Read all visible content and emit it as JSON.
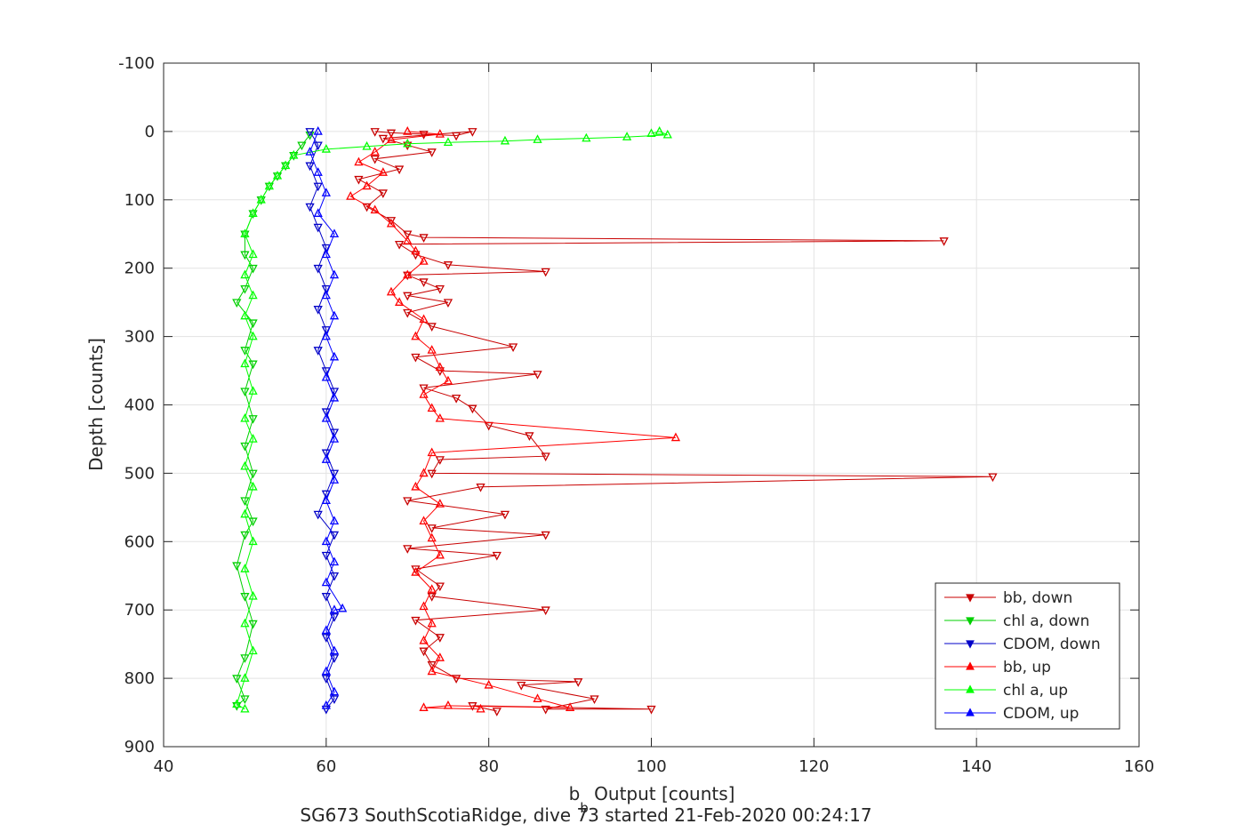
{
  "chart_data": {
    "type": "scatter",
    "title": "",
    "xlabel_main": "b",
    "xlabel_sub": "b",
    "xlabel_rest": " Output [counts]",
    "ylabel": "Depth [counts]",
    "caption": "SG673 SouthScotiaRidge, dive 73 started 21-Feb-2020 00:24:17",
    "xlim": [
      40,
      160
    ],
    "ylim": [
      -100,
      900
    ],
    "y_reversed": true,
    "grid": true,
    "x_ticks": [
      "40",
      "60",
      "80",
      "100",
      "120",
      "140",
      "160"
    ],
    "y_ticks": [
      "-100",
      "0",
      "100",
      "200",
      "300",
      "400",
      "500",
      "600",
      "700",
      "800",
      "900"
    ],
    "legend_position": "bottom-right",
    "series": [
      {
        "name": "bb, down",
        "color": "#c80000",
        "marker": "triangle-down",
        "line": true,
        "points": [
          [
            66,
            0
          ],
          [
            68,
            2
          ],
          [
            72,
            4
          ],
          [
            76,
            6
          ],
          [
            78,
            0
          ],
          [
            67,
            10
          ],
          [
            70,
            20
          ],
          [
            73,
            30
          ],
          [
            66,
            40
          ],
          [
            69,
            55
          ],
          [
            64,
            70
          ],
          [
            67,
            90
          ],
          [
            65,
            110
          ],
          [
            68,
            130
          ],
          [
            70,
            150
          ],
          [
            72,
            155
          ],
          [
            136,
            160
          ],
          [
            69,
            165
          ],
          [
            71,
            180
          ],
          [
            75,
            195
          ],
          [
            87,
            205
          ],
          [
            70,
            210
          ],
          [
            72,
            220
          ],
          [
            74,
            230
          ],
          [
            70,
            240
          ],
          [
            75,
            250
          ],
          [
            70,
            265
          ],
          [
            73,
            285
          ],
          [
            83,
            315
          ],
          [
            71,
            330
          ],
          [
            74,
            350
          ],
          [
            86,
            355
          ],
          [
            72,
            375
          ],
          [
            76,
            390
          ],
          [
            78,
            405
          ],
          [
            80,
            430
          ],
          [
            85,
            445
          ],
          [
            87,
            475
          ],
          [
            74,
            480
          ],
          [
            73,
            500
          ],
          [
            142,
            505
          ],
          [
            79,
            520
          ],
          [
            70,
            540
          ],
          [
            82,
            560
          ],
          [
            73,
            580
          ],
          [
            87,
            590
          ],
          [
            70,
            610
          ],
          [
            81,
            620
          ],
          [
            71,
            640
          ],
          [
            74,
            665
          ],
          [
            73,
            680
          ],
          [
            87,
            700
          ],
          [
            71,
            715
          ],
          [
            74,
            740
          ],
          [
            72,
            760
          ],
          [
            73,
            780
          ],
          [
            76,
            800
          ],
          [
            91,
            805
          ],
          [
            84,
            810
          ],
          [
            93,
            830
          ],
          [
            87,
            845
          ],
          [
            100,
            845
          ],
          [
            78,
            840
          ],
          [
            81,
            848
          ]
        ]
      },
      {
        "name": "chl a, down",
        "color": "#00d000",
        "marker": "triangle-down",
        "line": true,
        "points": [
          [
            58,
            5
          ],
          [
            57,
            20
          ],
          [
            56,
            35
          ],
          [
            55,
            50
          ],
          [
            54,
            65
          ],
          [
            53,
            80
          ],
          [
            52,
            100
          ],
          [
            51,
            120
          ],
          [
            50,
            150
          ],
          [
            50,
            180
          ],
          [
            51,
            200
          ],
          [
            50,
            230
          ],
          [
            49,
            250
          ],
          [
            51,
            280
          ],
          [
            50,
            320
          ],
          [
            51,
            340
          ],
          [
            50,
            380
          ],
          [
            51,
            420
          ],
          [
            50,
            460
          ],
          [
            51,
            500
          ],
          [
            50,
            540
          ],
          [
            51,
            570
          ],
          [
            50,
            590
          ],
          [
            49,
            635
          ],
          [
            50,
            680
          ],
          [
            51,
            720
          ],
          [
            50,
            770
          ],
          [
            49,
            800
          ],
          [
            50,
            830
          ],
          [
            49,
            840
          ]
        ]
      },
      {
        "name": "CDOM, down",
        "color": "#0000c8",
        "marker": "triangle-down",
        "line": true,
        "points": [
          [
            58,
            0
          ],
          [
            59,
            20
          ],
          [
            58,
            50
          ],
          [
            59,
            80
          ],
          [
            58,
            110
          ],
          [
            59,
            140
          ],
          [
            60,
            170
          ],
          [
            59,
            200
          ],
          [
            60,
            230
          ],
          [
            59,
            260
          ],
          [
            60,
            290
          ],
          [
            59,
            320
          ],
          [
            60,
            350
          ],
          [
            61,
            380
          ],
          [
            60,
            410
          ],
          [
            61,
            440
          ],
          [
            60,
            470
          ],
          [
            61,
            500
          ],
          [
            60,
            530
          ],
          [
            59,
            560
          ],
          [
            61,
            590
          ],
          [
            60,
            620
          ],
          [
            61,
            650
          ],
          [
            60,
            680
          ],
          [
            61,
            710
          ],
          [
            60,
            740
          ],
          [
            61,
            770
          ],
          [
            60,
            800
          ],
          [
            61,
            830
          ],
          [
            60,
            845
          ]
        ]
      },
      {
        "name": "bb, up",
        "color": "#ff0000",
        "marker": "triangle-up",
        "line": true,
        "points": [
          [
            70,
            0
          ],
          [
            74,
            4
          ],
          [
            68,
            12
          ],
          [
            66,
            30
          ],
          [
            64,
            45
          ],
          [
            67,
            60
          ],
          [
            65,
            80
          ],
          [
            63,
            95
          ],
          [
            66,
            115
          ],
          [
            68,
            135
          ],
          [
            70,
            160
          ],
          [
            71,
            175
          ],
          [
            72,
            190
          ],
          [
            70,
            210
          ],
          [
            68,
            235
          ],
          [
            69,
            250
          ],
          [
            72,
            275
          ],
          [
            71,
            300
          ],
          [
            73,
            320
          ],
          [
            74,
            345
          ],
          [
            75,
            365
          ],
          [
            72,
            385
          ],
          [
            73,
            405
          ],
          [
            74,
            420
          ],
          [
            103,
            448
          ],
          [
            73,
            470
          ],
          [
            72,
            500
          ],
          [
            71,
            520
          ],
          [
            74,
            545
          ],
          [
            72,
            570
          ],
          [
            73,
            595
          ],
          [
            74,
            620
          ],
          [
            71,
            645
          ],
          [
            73,
            670
          ],
          [
            72,
            695
          ],
          [
            73,
            720
          ],
          [
            72,
            745
          ],
          [
            74,
            770
          ],
          [
            73,
            790
          ],
          [
            80,
            810
          ],
          [
            86,
            830
          ],
          [
            90,
            843
          ],
          [
            75,
            840
          ],
          [
            72,
            843
          ],
          [
            79,
            845
          ]
        ]
      },
      {
        "name": "chl a, up",
        "color": "#00ff00",
        "marker": "triangle-up",
        "line": true,
        "points": [
          [
            100,
            3
          ],
          [
            101,
            0
          ],
          [
            102,
            5
          ],
          [
            97,
            8
          ],
          [
            92,
            10
          ],
          [
            86,
            12
          ],
          [
            82,
            14
          ],
          [
            75,
            16
          ],
          [
            70,
            18
          ],
          [
            65,
            22
          ],
          [
            60,
            26
          ],
          [
            56,
            35
          ],
          [
            55,
            50
          ],
          [
            54,
            65
          ],
          [
            53,
            80
          ],
          [
            52,
            100
          ],
          [
            51,
            120
          ],
          [
            50,
            150
          ],
          [
            51,
            180
          ],
          [
            50,
            210
          ],
          [
            51,
            240
          ],
          [
            50,
            270
          ],
          [
            51,
            300
          ],
          [
            50,
            340
          ],
          [
            51,
            380
          ],
          [
            50,
            420
          ],
          [
            51,
            450
          ],
          [
            50,
            490
          ],
          [
            51,
            520
          ],
          [
            50,
            560
          ],
          [
            51,
            600
          ],
          [
            50,
            640
          ],
          [
            51,
            680
          ],
          [
            50,
            720
          ],
          [
            51,
            760
          ],
          [
            50,
            800
          ],
          [
            49,
            838
          ],
          [
            50,
            845
          ]
        ]
      },
      {
        "name": "CDOM, up",
        "color": "#0000ff",
        "marker": "triangle-up",
        "line": true,
        "points": [
          [
            59,
            0
          ],
          [
            58,
            30
          ],
          [
            59,
            60
          ],
          [
            60,
            90
          ],
          [
            59,
            120
          ],
          [
            61,
            150
          ],
          [
            60,
            180
          ],
          [
            61,
            210
          ],
          [
            60,
            240
          ],
          [
            61,
            270
          ],
          [
            60,
            300
          ],
          [
            61,
            330
          ],
          [
            60,
            360
          ],
          [
            61,
            390
          ],
          [
            60,
            420
          ],
          [
            61,
            450
          ],
          [
            60,
            480
          ],
          [
            61,
            510
          ],
          [
            60,
            540
          ],
          [
            61,
            570
          ],
          [
            60,
            600
          ],
          [
            61,
            630
          ],
          [
            60,
            660
          ],
          [
            62,
            698
          ],
          [
            61,
            700
          ],
          [
            60,
            730
          ],
          [
            61,
            760
          ],
          [
            60,
            790
          ],
          [
            61,
            820
          ],
          [
            60,
            840
          ]
        ]
      }
    ]
  }
}
